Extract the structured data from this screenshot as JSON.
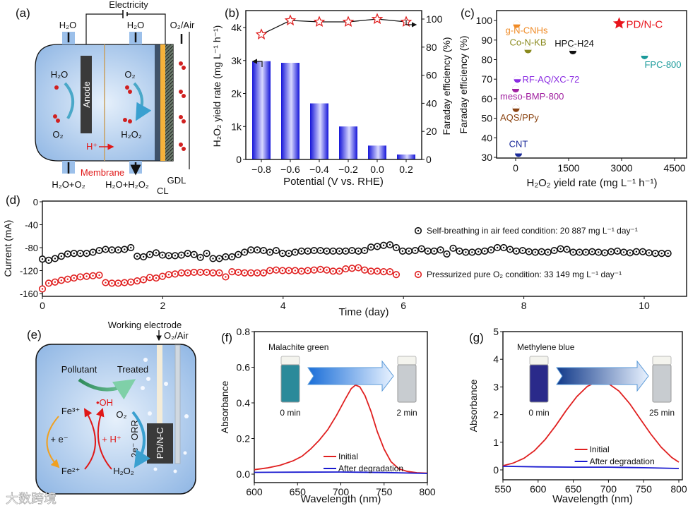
{
  "panel_a": {
    "label": "(a)",
    "electricity": "Electricity",
    "h2o_in_left": "H₂O",
    "h2o_in_right": "H₂O",
    "o2_air": "O₂/Air",
    "h2o_anode": "H₂O",
    "o2_anode": "O₂",
    "anode": "Anode",
    "o2_cathode": "O₂",
    "h2o2_cathode": "H₂O₂",
    "proton": "H⁺",
    "membrane": "Membrane",
    "out_left": "H₂O+O₂",
    "out_right": "H₂O+H₂O₂",
    "cl": "CL",
    "gdl": "GDL"
  },
  "panel_e": {
    "label": "(e)",
    "working_electrode": "Working electrode",
    "o2_air": "O₂/Air",
    "pollutant": "Pollutant",
    "treated": "Treated",
    "fe3": "Fe³⁺",
    "oh": "•OH",
    "o2": "O₂",
    "orr": "2e⁻ ORR",
    "plus_e": "+ e⁻",
    "plus_h": "+ H⁺",
    "fe2": "Fe²⁺",
    "h2o2": "H₂O₂",
    "electrode": "PD/N-C"
  },
  "watermark": "大数跨境",
  "chart_data": [
    {
      "panel": "(b)",
      "type": "bar",
      "categories": [
        "−0.8",
        "−0.6",
        "−0.4",
        "−0.2",
        "0.0",
        "0.2"
      ],
      "series": [
        {
          "name": "H₂O₂ yield rate",
          "axis": "left",
          "type": "bar",
          "color": "#1f1fe0",
          "values": [
            2980,
            2930,
            1700,
            1000,
            420,
            150
          ]
        },
        {
          "name": "Faraday efficiency",
          "axis": "right",
          "type": "line",
          "color": "#e02020",
          "values": [
            89,
            99,
            98,
            98,
            100,
            98
          ]
        }
      ],
      "xlabel": "Potential (V vs. RHE)",
      "ylabel": "H₂O₂ yield rate (mg L⁻¹ h⁻¹)",
      "ylabel_right": "Faraday efficiency (%)",
      "yticks": [
        0,
        1000,
        2000,
        3000,
        4000
      ],
      "ytick_labels": [
        "0",
        "1k",
        "2k",
        "3k",
        "4k"
      ],
      "yticks_right": [
        "0",
        "20",
        "40",
        "60",
        "80",
        "100"
      ],
      "ylim": [
        0,
        4450
      ],
      "ylim_right": [
        0,
        106
      ]
    },
    {
      "panel": "(c)",
      "type": "scatter",
      "points": [
        {
          "name": "PD/N-C",
          "x": 2930,
          "y": 98.5,
          "color": "#e8141c",
          "marker": "star"
        },
        {
          "name": "g-N-CNHs",
          "x": 30,
          "y": 98,
          "color": "#f08a24",
          "marker": "half-circle"
        },
        {
          "name": "Co-N-KB",
          "x": 350,
          "y": 85,
          "color": "#8a8a1e",
          "marker": "half-circle"
        },
        {
          "name": "HPC-H24",
          "x": 1620,
          "y": 84.5,
          "color": "#111111",
          "marker": "half-circle"
        },
        {
          "name": "FPC-800",
          "x": 3650,
          "y": 82,
          "color": "#1a9a9a",
          "marker": "half-circle"
        },
        {
          "name": "RF-AQ/XC-72",
          "x": 50,
          "y": 70,
          "color": "#8a2be2",
          "marker": "half-circle"
        },
        {
          "name": "meso-BMP-800",
          "x": 0,
          "y": 65,
          "color": "#a020a0",
          "marker": "half-circle"
        },
        {
          "name": "AQS/PPy",
          "x": 10,
          "y": 55,
          "color": "#8b4513",
          "marker": "half-circle"
        },
        {
          "name": "CNT",
          "x": 80,
          "y": 32,
          "color": "#1a2a9a",
          "marker": "half-circle"
        }
      ],
      "xlabel": "H₂O₂ yield rate (mg L⁻¹ h⁻¹)",
      "ylabel": "Faraday efficiency (%)",
      "xticks": [
        "0",
        "1500",
        "3000",
        "4500"
      ],
      "yticks": [
        "30",
        "40",
        "50",
        "60",
        "70",
        "80",
        "90",
        "100"
      ],
      "xlim": [
        -540,
        4840
      ],
      "ylim": [
        30,
        105
      ]
    },
    {
      "panel": "(d)",
      "type": "scatter",
      "xlabel": "Time (day)",
      "ylabel": "Current (mA)",
      "xticks": [
        "0",
        "2",
        "4",
        "6",
        "8",
        "10"
      ],
      "yticks": [
        "0",
        "-40",
        "-80",
        "-120",
        "-160"
      ],
      "xlim": [
        0,
        10.5
      ],
      "ylim": [
        -160,
        0
      ],
      "series": [
        {
          "name": "Self-breathing in air feed condition: 20 887 mg L⁻¹ day⁻¹",
          "color": "#111111",
          "x_start": 0,
          "x_step": 0.105,
          "values": [
            -100,
            -102,
            -99,
            -95,
            -91,
            -90,
            -90,
            -90,
            -88,
            -85,
            -83,
            -84,
            -84,
            -83,
            -80,
            -95,
            -96,
            -92,
            -89,
            -93,
            -94,
            -94,
            -93,
            -90,
            -92,
            -97,
            -90,
            -99,
            -99,
            -96,
            -96,
            -92,
            -88,
            -84,
            -84,
            -85,
            -88,
            -85,
            -90,
            -90,
            -88,
            -86,
            -86,
            -85,
            -85,
            -86,
            -86,
            -86,
            -86,
            -85,
            -86,
            -85,
            -79,
            -78,
            -76,
            -75,
            -80,
            -86,
            -86,
            -85,
            -82,
            -86,
            -86,
            -84,
            -91,
            -81,
            -86,
            -88,
            -88,
            -87,
            -86,
            -84,
            -80,
            -80,
            -83,
            -86,
            -85,
            -87,
            -88,
            -87,
            -88,
            -85,
            -82,
            -83,
            -88,
            -88,
            -88,
            -87,
            -88,
            -89,
            -87,
            -86,
            -88,
            -89,
            -87,
            -87,
            -89,
            -90,
            -90,
            -90
          ]
        },
        {
          "name": "Pressurized pure O₂ condition: 33 149 mg L⁻¹ day⁻¹",
          "color": "#e02020",
          "x_start": 0,
          "x_step": 0.105,
          "values": [
            -152,
            -142,
            -140,
            -137,
            -135,
            -133,
            -131,
            -130,
            -129,
            -128,
            -141,
            -142,
            -142,
            -141,
            -140,
            -138,
            -136,
            -132,
            -133,
            -130,
            -127,
            -126,
            -124,
            -124,
            -123,
            -123,
            -123,
            -124,
            -124,
            -131,
            -122,
            -123,
            -124,
            -124,
            -124,
            -124,
            -120,
            -119,
            -120,
            -120,
            -120,
            -121,
            -120,
            -119,
            -118,
            -119,
            -121,
            -121,
            -117,
            -116,
            -115,
            -119,
            -121,
            -121,
            -122,
            -122,
            -127
          ]
        }
      ]
    },
    {
      "panel": "(f)",
      "type": "line",
      "inset_title": "Malachite green",
      "inset_before": "0 min",
      "inset_after": "2 min",
      "xlabel": "Wavelength (nm)",
      "ylabel": "Absorbance",
      "xticks": [
        "600",
        "650",
        "700",
        "750",
        "800"
      ],
      "yticks": [
        "0.0",
        "0.2",
        "0.4",
        "0.6",
        "0.8"
      ],
      "xlim": [
        600,
        800
      ],
      "ylim": [
        -0.05,
        0.8
      ],
      "series": [
        {
          "name": "Initial",
          "color": "#e02020",
          "x": [
            600,
            615,
            630,
            645,
            655,
            665,
            675,
            685,
            695,
            705,
            712,
            717,
            722,
            728,
            735,
            742,
            750,
            758,
            767,
            777,
            788,
            800
          ],
          "y": [
            0.025,
            0.035,
            0.05,
            0.075,
            0.1,
            0.14,
            0.19,
            0.25,
            0.33,
            0.42,
            0.48,
            0.5,
            0.49,
            0.44,
            0.35,
            0.24,
            0.14,
            0.07,
            0.03,
            0.015,
            0.008,
            0.005
          ]
        },
        {
          "name": "After degradation",
          "color": "#1a1ad0",
          "x": [
            600,
            650,
            700,
            750,
            800
          ],
          "y": [
            0.01,
            0.011,
            0.012,
            0.009,
            0.004
          ]
        }
      ]
    },
    {
      "panel": "(g)",
      "type": "line",
      "inset_title": "Methylene blue",
      "inset_before": "0 min",
      "inset_after": "25 min",
      "xlabel": "Wavelength (nm)",
      "ylabel": "Absorbance",
      "xticks": [
        "550",
        "600",
        "650",
        "700",
        "750",
        "800"
      ],
      "yticks": [
        "0",
        "1",
        "2",
        "3",
        "4",
        "5"
      ],
      "xlim": [
        550,
        800
      ],
      "ylim": [
        -0.35,
        5
      ],
      "series": [
        {
          "name": "Initial",
          "color": "#e02020",
          "x": [
            550,
            565,
            580,
            595,
            610,
            625,
            640,
            655,
            670,
            685,
            700,
            715,
            730,
            745,
            760,
            775,
            790,
            800
          ],
          "y": [
            0.15,
            0.25,
            0.42,
            0.7,
            1.1,
            1.6,
            2.15,
            2.65,
            3.02,
            3.2,
            3.12,
            2.85,
            2.4,
            1.85,
            1.3,
            0.82,
            0.45,
            0.28
          ]
        },
        {
          "name": "After degradation",
          "color": "#1a1ad0",
          "x": [
            550,
            600,
            650,
            700,
            750,
            800
          ],
          "y": [
            0.13,
            0.11,
            0.1,
            0.1,
            0.08,
            0.05
          ]
        }
      ]
    }
  ]
}
